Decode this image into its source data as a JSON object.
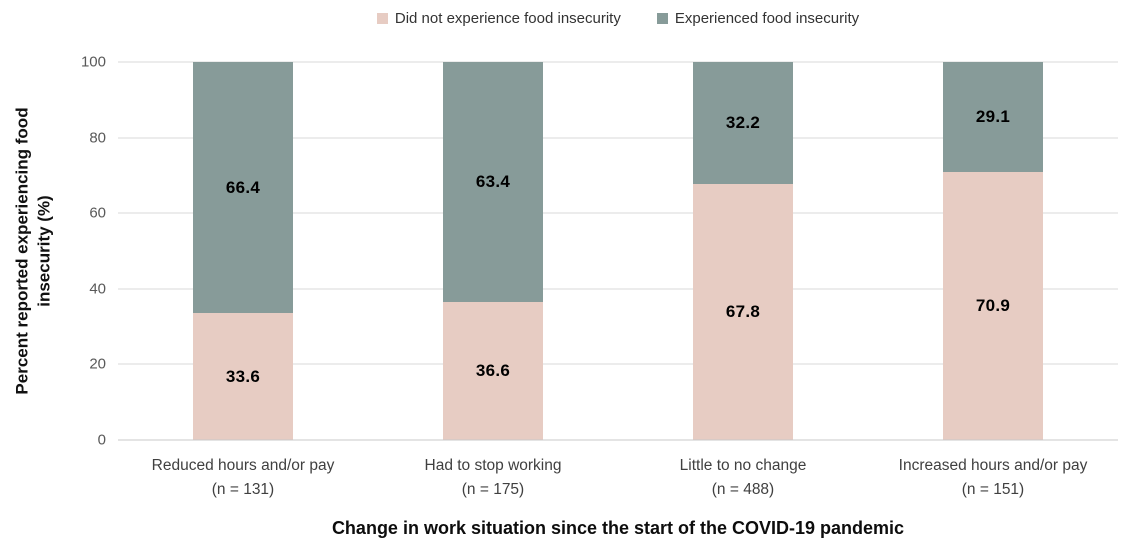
{
  "chart_data": {
    "type": "bar",
    "stacked": true,
    "orientation": "vertical",
    "xlabel": "Change in work situation since the start of the COVID-19 pandemic",
    "ylabel": "Percent reported experiencing food insecurity (%)",
    "ylim": [
      0,
      100
    ],
    "yticks": [
      0,
      20,
      40,
      60,
      80,
      100
    ],
    "grid": true,
    "gridline_color": "#d9d9d9",
    "legend_position": "top",
    "categories": [
      {
        "label": "Reduced hours and/or pay",
        "n": "(n = 131)"
      },
      {
        "label": "Had to stop working",
        "n": "(n = 175)"
      },
      {
        "label": "Little to no change",
        "n": "(n = 488)"
      },
      {
        "label": "Increased hours and/or pay",
        "n": "(n = 151)"
      }
    ],
    "series": [
      {
        "name": "Did not experience food insecurity",
        "color": "#e7ccc3",
        "values": [
          33.6,
          36.6,
          67.8,
          70.9
        ]
      },
      {
        "name": "Experienced food insecurity",
        "color": "#879b99",
        "values": [
          66.4,
          63.4,
          32.2,
          29.1
        ]
      }
    ]
  }
}
